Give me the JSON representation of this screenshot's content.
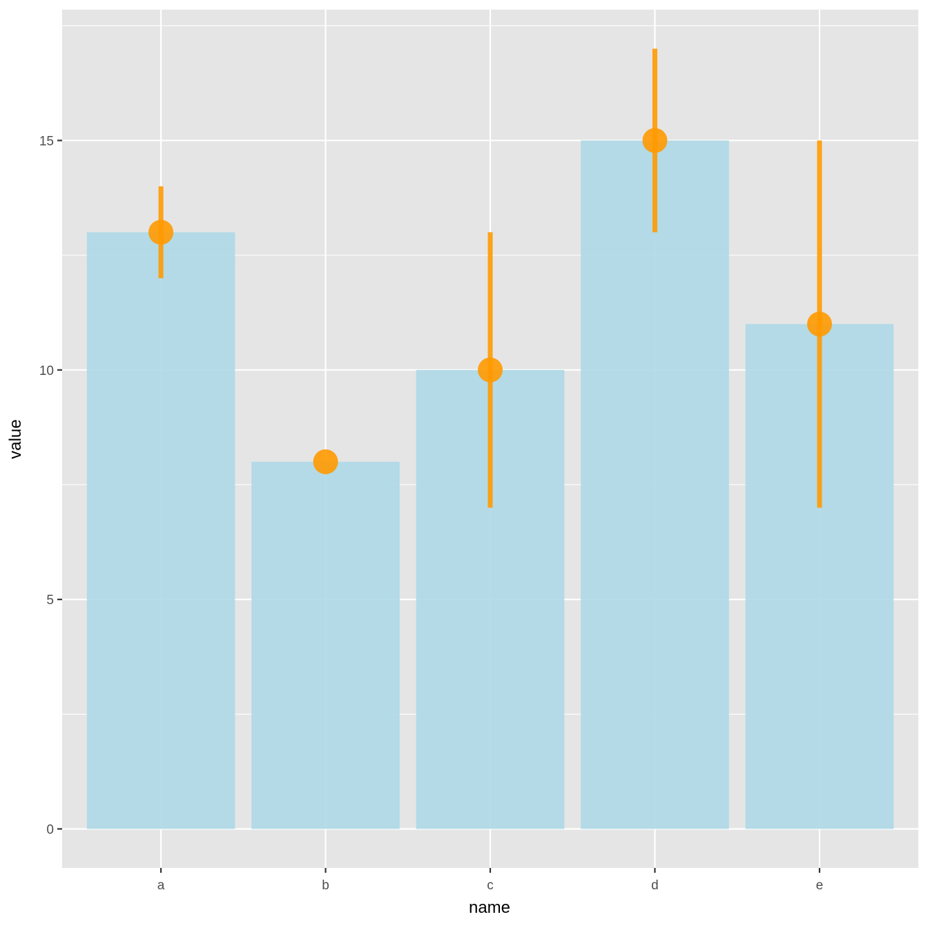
{
  "chart_data": {
    "type": "bar",
    "categories": [
      "a",
      "b",
      "c",
      "d",
      "e"
    ],
    "values": [
      13,
      8,
      10,
      15,
      11
    ],
    "error_low": [
      12,
      8,
      7,
      13,
      7
    ],
    "error_high": [
      14,
      8,
      13,
      17,
      15
    ],
    "xlabel": "name",
    "ylabel": "value",
    "ylim": [
      -0.85,
      17.85
    ],
    "yticks": [
      0,
      5,
      10,
      15
    ],
    "ytick_labels": [
      "0",
      "5",
      "10",
      "15"
    ],
    "grid": true,
    "colors": {
      "bar": "#add8e6",
      "point": "#ff9900",
      "errorbar": "#ff9900",
      "panel": "#e5e5e5",
      "gridline": "#ffffff"
    }
  }
}
